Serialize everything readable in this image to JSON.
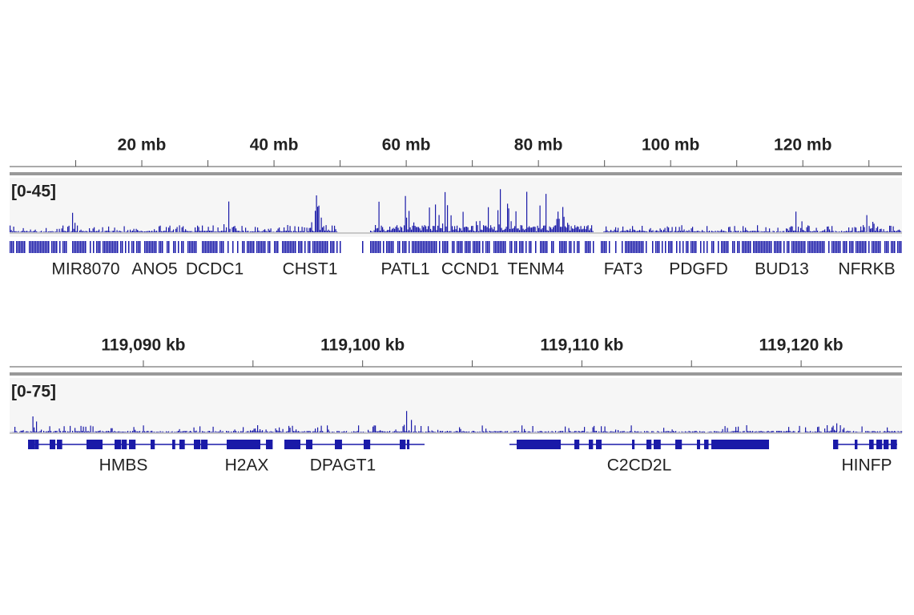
{
  "panels": [
    {
      "ticks": [
        {
          "value": 20,
          "label": "20 mb"
        },
        {
          "value": 40,
          "label": "40 mb"
        },
        {
          "value": 60,
          "label": "60 mb"
        },
        {
          "value": 80,
          "label": "80 mb"
        },
        {
          "value": 100,
          "label": "100 mb"
        },
        {
          "value": 120,
          "label": "120 mb"
        }
      ],
      "minor_ticks": [
        10,
        30,
        50,
        70,
        90,
        110,
        130
      ],
      "xlim": [
        0,
        135
      ],
      "range": "[0-45]",
      "genes": [
        "MIR8070",
        "ANO5",
        "DCDC1",
        "CHST1",
        "PATL1",
        "CCND1",
        "TENM4",
        "FAT3",
        "PDGFD",
        "BUD13",
        "NFRKB"
      ]
    },
    {
      "ticks": [
        {
          "value": 119090,
          "label": "119,090 kb"
        },
        {
          "value": 119100,
          "label": "119,100 kb"
        },
        {
          "value": 119110,
          "label": "119,110 kb"
        },
        {
          "value": 119120,
          "label": "119,120 kb"
        }
      ],
      "minor_ticks": [
        119095,
        119105,
        119115
      ],
      "xlim": [
        119083.9,
        119124.6
      ],
      "range": "[0-75]",
      "genes": [
        "HMBS",
        "H2AX",
        "DPAGT1",
        "C2CD2L",
        "HINFP"
      ]
    }
  ]
}
